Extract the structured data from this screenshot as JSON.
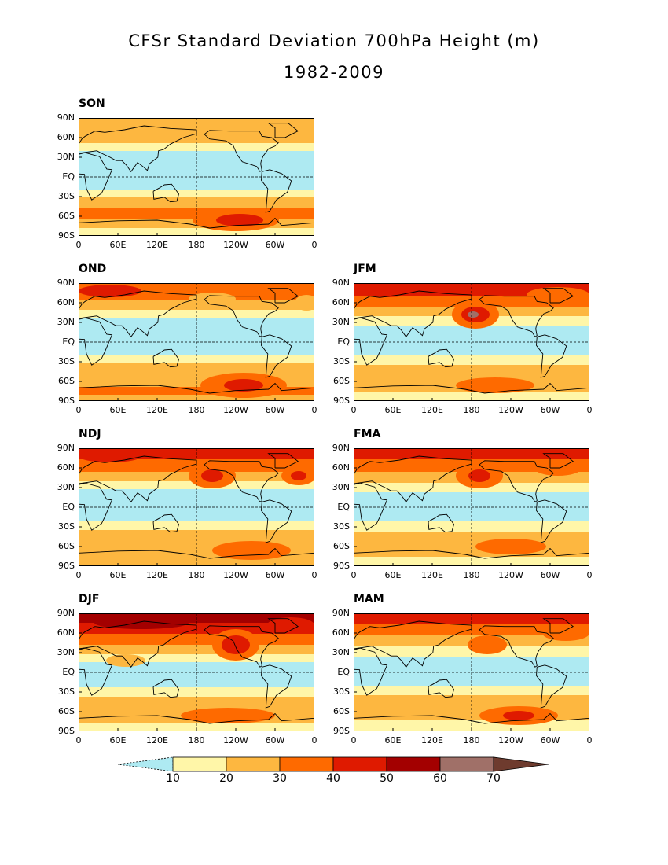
{
  "title": "CFSr Standard Deviation 700hPa Height (m)",
  "subtitle": "1982-2009",
  "lat_ticks": [
    "90N",
    "60N",
    "30N",
    "EQ",
    "30S",
    "60S",
    "90S"
  ],
  "lon_ticks": [
    "0",
    "60E",
    "120E",
    "180",
    "120W",
    "60W",
    "0"
  ],
  "panels": [
    {
      "label": "SON"
    },
    {
      "label": "OND"
    },
    {
      "label": "JFM"
    },
    {
      "label": "NDJ"
    },
    {
      "label": "FMA"
    },
    {
      "label": "DJF"
    },
    {
      "label": "MAM"
    }
  ],
  "colorbar": {
    "labels": [
      "10",
      "20",
      "30",
      "40",
      "50",
      "60",
      "70"
    ],
    "colors": [
      "#aeeaf2",
      "#fff6a8",
      "#fdb740",
      "#fe6a00",
      "#df1a00",
      "#a30000",
      "#a07068",
      "#6e3b2e"
    ]
  }
}
